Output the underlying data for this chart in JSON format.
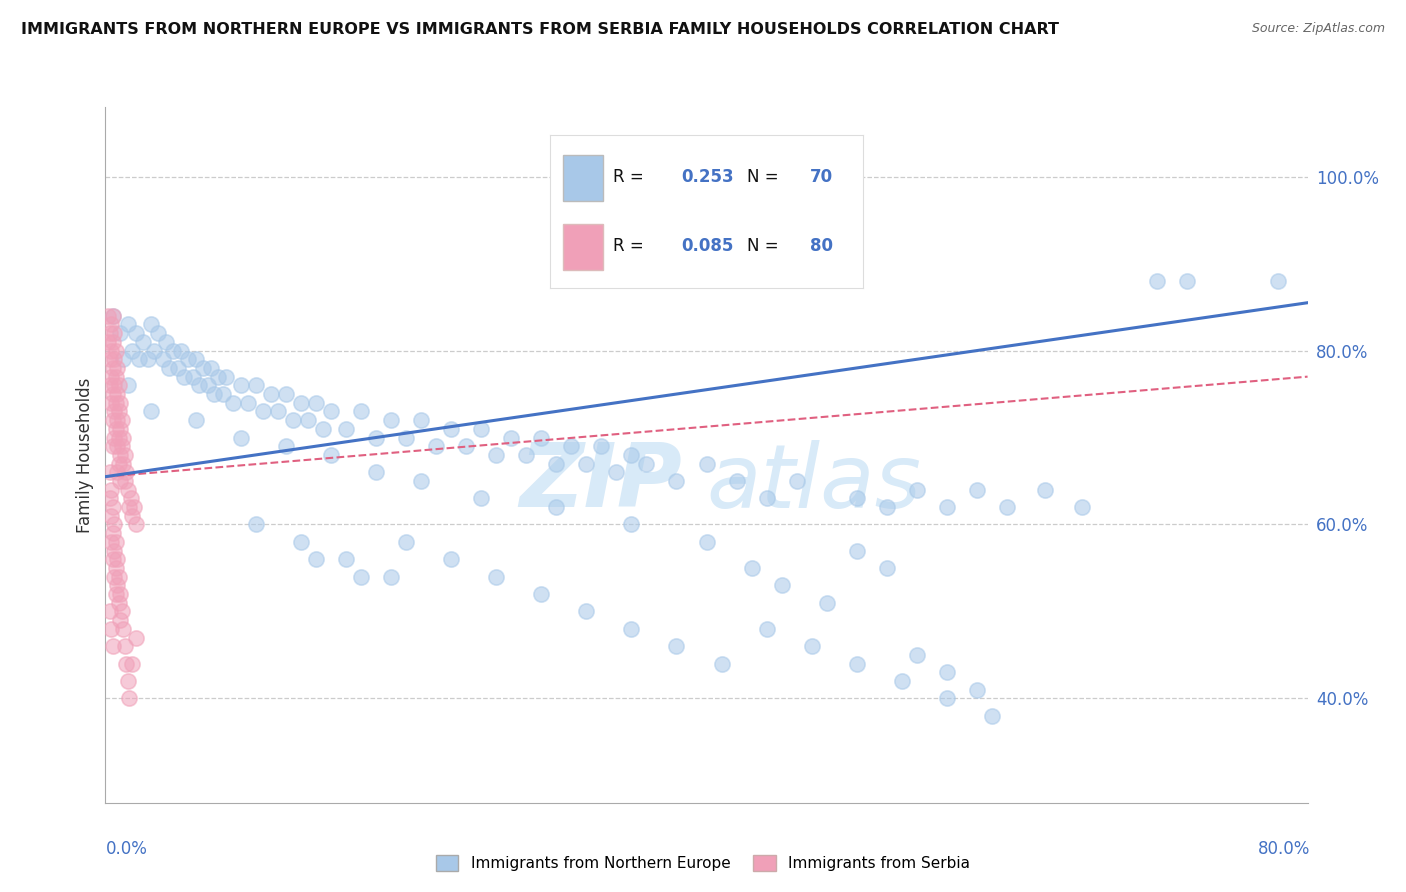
{
  "title": "IMMIGRANTS FROM NORTHERN EUROPE VS IMMIGRANTS FROM SERBIA FAMILY HOUSEHOLDS CORRELATION CHART",
  "source": "Source: ZipAtlas.com",
  "ylabel": "Family Households",
  "x_label_bottom_left": "0.0%",
  "x_label_bottom_right": "80.0%",
  "xlim": [
    0.0,
    0.8
  ],
  "ylim": [
    0.28,
    1.08
  ],
  "right_yticks": [
    0.4,
    0.6,
    0.8,
    1.0
  ],
  "right_yticklabels": [
    "40.0%",
    "60.0%",
    "80.0%",
    "100.0%"
  ],
  "legend_label1": "Immigrants from Northern Europe",
  "legend_label2": "Immigrants from Serbia",
  "blue_color": "#a8c8e8",
  "pink_color": "#f0a0b8",
  "trend_blue_color": "#4472c4",
  "trend_pink_color": "#e06080",
  "watermark_color": "#d8eaf8",
  "blue_scatter": [
    [
      0.005,
      0.84
    ],
    [
      0.01,
      0.82
    ],
    [
      0.012,
      0.79
    ],
    [
      0.015,
      0.83
    ],
    [
      0.018,
      0.8
    ],
    [
      0.02,
      0.82
    ],
    [
      0.022,
      0.79
    ],
    [
      0.025,
      0.81
    ],
    [
      0.028,
      0.79
    ],
    [
      0.03,
      0.83
    ],
    [
      0.032,
      0.8
    ],
    [
      0.035,
      0.82
    ],
    [
      0.038,
      0.79
    ],
    [
      0.04,
      0.81
    ],
    [
      0.042,
      0.78
    ],
    [
      0.045,
      0.8
    ],
    [
      0.048,
      0.78
    ],
    [
      0.05,
      0.8
    ],
    [
      0.052,
      0.77
    ],
    [
      0.055,
      0.79
    ],
    [
      0.058,
      0.77
    ],
    [
      0.06,
      0.79
    ],
    [
      0.062,
      0.76
    ],
    [
      0.065,
      0.78
    ],
    [
      0.068,
      0.76
    ],
    [
      0.07,
      0.78
    ],
    [
      0.072,
      0.75
    ],
    [
      0.075,
      0.77
    ],
    [
      0.078,
      0.75
    ],
    [
      0.08,
      0.77
    ],
    [
      0.085,
      0.74
    ],
    [
      0.09,
      0.76
    ],
    [
      0.095,
      0.74
    ],
    [
      0.1,
      0.76
    ],
    [
      0.105,
      0.73
    ],
    [
      0.11,
      0.75
    ],
    [
      0.115,
      0.73
    ],
    [
      0.12,
      0.75
    ],
    [
      0.125,
      0.72
    ],
    [
      0.13,
      0.74
    ],
    [
      0.135,
      0.72
    ],
    [
      0.14,
      0.74
    ],
    [
      0.145,
      0.71
    ],
    [
      0.15,
      0.73
    ],
    [
      0.16,
      0.71
    ],
    [
      0.17,
      0.73
    ],
    [
      0.18,
      0.7
    ],
    [
      0.19,
      0.72
    ],
    [
      0.2,
      0.7
    ],
    [
      0.21,
      0.72
    ],
    [
      0.22,
      0.69
    ],
    [
      0.23,
      0.71
    ],
    [
      0.24,
      0.69
    ],
    [
      0.25,
      0.71
    ],
    [
      0.26,
      0.68
    ],
    [
      0.27,
      0.7
    ],
    [
      0.28,
      0.68
    ],
    [
      0.29,
      0.7
    ],
    [
      0.3,
      0.67
    ],
    [
      0.31,
      0.69
    ],
    [
      0.32,
      0.67
    ],
    [
      0.33,
      0.69
    ],
    [
      0.34,
      0.66
    ],
    [
      0.35,
      0.68
    ],
    [
      0.36,
      0.67
    ],
    [
      0.38,
      0.65
    ],
    [
      0.4,
      0.67
    ],
    [
      0.42,
      0.65
    ],
    [
      0.44,
      0.63
    ],
    [
      0.46,
      0.65
    ],
    [
      0.5,
      0.63
    ],
    [
      0.52,
      0.62
    ],
    [
      0.54,
      0.64
    ],
    [
      0.56,
      0.62
    ],
    [
      0.58,
      0.64
    ],
    [
      0.6,
      0.62
    ],
    [
      0.625,
      0.64
    ],
    [
      0.65,
      0.62
    ],
    [
      0.7,
      0.88
    ],
    [
      0.72,
      0.88
    ],
    [
      0.78,
      0.88
    ],
    [
      0.015,
      0.76
    ],
    [
      0.03,
      0.73
    ],
    [
      0.06,
      0.72
    ],
    [
      0.09,
      0.7
    ],
    [
      0.12,
      0.69
    ],
    [
      0.15,
      0.68
    ],
    [
      0.18,
      0.66
    ],
    [
      0.21,
      0.65
    ],
    [
      0.25,
      0.63
    ],
    [
      0.3,
      0.62
    ],
    [
      0.35,
      0.6
    ],
    [
      0.4,
      0.58
    ],
    [
      0.43,
      0.55
    ],
    [
      0.45,
      0.53
    ],
    [
      0.48,
      0.51
    ],
    [
      0.5,
      0.57
    ],
    [
      0.52,
      0.55
    ],
    [
      0.54,
      0.45
    ],
    [
      0.56,
      0.43
    ],
    [
      0.58,
      0.41
    ],
    [
      0.14,
      0.56
    ],
    [
      0.17,
      0.54
    ],
    [
      0.2,
      0.58
    ],
    [
      0.23,
      0.56
    ],
    [
      0.26,
      0.54
    ],
    [
      0.29,
      0.52
    ],
    [
      0.32,
      0.5
    ],
    [
      0.35,
      0.48
    ],
    [
      0.38,
      0.46
    ],
    [
      0.41,
      0.44
    ],
    [
      0.44,
      0.48
    ],
    [
      0.47,
      0.46
    ],
    [
      0.5,
      0.44
    ],
    [
      0.53,
      0.42
    ],
    [
      0.56,
      0.4
    ],
    [
      0.59,
      0.38
    ],
    [
      0.1,
      0.6
    ],
    [
      0.13,
      0.58
    ],
    [
      0.16,
      0.56
    ],
    [
      0.19,
      0.54
    ]
  ],
  "pink_scatter": [
    [
      0.002,
      0.84
    ],
    [
      0.002,
      0.81
    ],
    [
      0.003,
      0.82
    ],
    [
      0.003,
      0.79
    ],
    [
      0.003,
      0.76
    ],
    [
      0.004,
      0.83
    ],
    [
      0.004,
      0.8
    ],
    [
      0.004,
      0.77
    ],
    [
      0.004,
      0.74
    ],
    [
      0.005,
      0.84
    ],
    [
      0.005,
      0.81
    ],
    [
      0.005,
      0.78
    ],
    [
      0.005,
      0.75
    ],
    [
      0.005,
      0.72
    ],
    [
      0.005,
      0.69
    ],
    [
      0.006,
      0.82
    ],
    [
      0.006,
      0.79
    ],
    [
      0.006,
      0.76
    ],
    [
      0.006,
      0.73
    ],
    [
      0.006,
      0.7
    ],
    [
      0.007,
      0.8
    ],
    [
      0.007,
      0.77
    ],
    [
      0.007,
      0.74
    ],
    [
      0.007,
      0.71
    ],
    [
      0.008,
      0.78
    ],
    [
      0.008,
      0.75
    ],
    [
      0.008,
      0.72
    ],
    [
      0.008,
      0.69
    ],
    [
      0.008,
      0.66
    ],
    [
      0.009,
      0.76
    ],
    [
      0.009,
      0.73
    ],
    [
      0.009,
      0.7
    ],
    [
      0.009,
      0.67
    ],
    [
      0.01,
      0.74
    ],
    [
      0.01,
      0.71
    ],
    [
      0.01,
      0.68
    ],
    [
      0.01,
      0.65
    ],
    [
      0.011,
      0.72
    ],
    [
      0.011,
      0.69
    ],
    [
      0.012,
      0.7
    ],
    [
      0.012,
      0.67
    ],
    [
      0.013,
      0.68
    ],
    [
      0.013,
      0.65
    ],
    [
      0.014,
      0.66
    ],
    [
      0.015,
      0.64
    ],
    [
      0.016,
      0.62
    ],
    [
      0.017,
      0.63
    ],
    [
      0.018,
      0.61
    ],
    [
      0.019,
      0.62
    ],
    [
      0.02,
      0.6
    ],
    [
      0.003,
      0.66
    ],
    [
      0.003,
      0.63
    ],
    [
      0.004,
      0.64
    ],
    [
      0.004,
      0.61
    ],
    [
      0.004,
      0.58
    ],
    [
      0.005,
      0.62
    ],
    [
      0.005,
      0.59
    ],
    [
      0.005,
      0.56
    ],
    [
      0.006,
      0.6
    ],
    [
      0.006,
      0.57
    ],
    [
      0.006,
      0.54
    ],
    [
      0.007,
      0.58
    ],
    [
      0.007,
      0.55
    ],
    [
      0.007,
      0.52
    ],
    [
      0.008,
      0.56
    ],
    [
      0.008,
      0.53
    ],
    [
      0.009,
      0.54
    ],
    [
      0.009,
      0.51
    ],
    [
      0.01,
      0.52
    ],
    [
      0.01,
      0.49
    ],
    [
      0.011,
      0.5
    ],
    [
      0.012,
      0.48
    ],
    [
      0.013,
      0.46
    ],
    [
      0.014,
      0.44
    ],
    [
      0.015,
      0.42
    ],
    [
      0.016,
      0.4
    ],
    [
      0.018,
      0.44
    ],
    [
      0.02,
      0.47
    ],
    [
      0.003,
      0.5
    ],
    [
      0.004,
      0.48
    ],
    [
      0.005,
      0.46
    ]
  ],
  "blue_trend_x": [
    0.0,
    0.8
  ],
  "blue_trend_y": [
    0.655,
    0.855
  ],
  "pink_trend_x": [
    0.0,
    0.8
  ],
  "pink_trend_y": [
    0.655,
    0.77
  ]
}
